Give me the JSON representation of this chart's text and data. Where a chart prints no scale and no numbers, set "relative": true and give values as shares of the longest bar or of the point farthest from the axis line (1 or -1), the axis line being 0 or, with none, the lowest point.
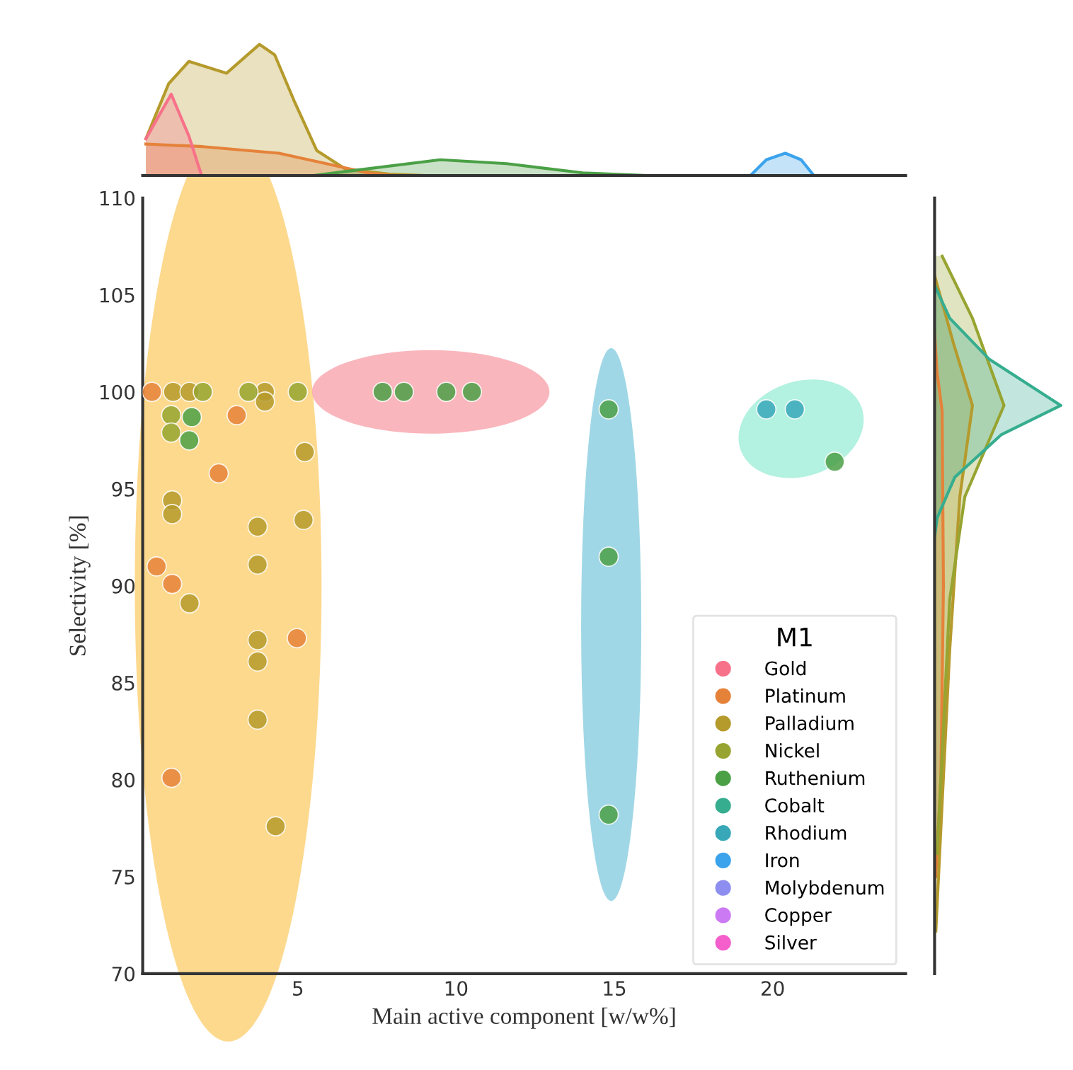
{
  "chart_data": [
    {
      "type": "scatter",
      "xlabel": "Main active component [w/w%]",
      "ylabel": "Selectivity [%]",
      "legend_title": "M1",
      "legend": "bottom right",
      "grid": false,
      "marker": "circle",
      "xlim": [
        0.1,
        24.2
      ],
      "xticks": [
        5,
        10,
        15,
        20
      ],
      "ylim": [
        70,
        110
      ],
      "yticks": [
        70,
        75,
        80,
        85,
        90,
        95,
        100,
        105,
        110
      ],
      "series": [
        {
          "name": "Gold",
          "color": "#f77189"
        },
        {
          "name": "Platinum",
          "color": "#e5823a",
          "x": [
            0.39,
            3.07,
            2.5,
            0.54,
            1.03,
            4.97,
            1.01
          ],
          "values": [
            100,
            98.8,
            95.8,
            91.0,
            90.1,
            87.3,
            80.1
          ]
        },
        {
          "name": "Palladium",
          "color": "#b59a2c",
          "x": [
            1.06,
            1.58,
            3.96,
            3.96,
            5.22,
            1.03,
            1.03,
            3.73,
            5.18,
            3.73,
            1.58,
            3.73,
            3.73,
            3.73,
            4.3
          ],
          "values": [
            100,
            100,
            100,
            99.5,
            96.9,
            94.4,
            93.7,
            93.05,
            93.4,
            91.1,
            89.1,
            87.2,
            86.1,
            83.1,
            77.6
          ]
        },
        {
          "name": "Nickel",
          "color": "#97a431",
          "x": [
            2.0,
            3.44,
            5.0,
            1.0,
            1.0
          ],
          "values": [
            100,
            100,
            100,
            98.8,
            97.9
          ]
        },
        {
          "name": "Ruthenium",
          "color": "#4ba046",
          "x": [
            1.65,
            1.57,
            7.68,
            8.35,
            9.69,
            10.5,
            14.82,
            14.82,
            14.82,
            21.96
          ],
          "values": [
            98.7,
            97.5,
            100,
            100,
            100,
            100,
            99.1,
            91.5,
            78.2,
            96.4
          ]
        },
        {
          "name": "Cobalt",
          "color": "#36ad8f"
        },
        {
          "name": "Rhodium",
          "color": "#38a8b8",
          "x": [
            19.8,
            20.7
          ],
          "values": [
            99.1,
            99.1
          ]
        },
        {
          "name": "Iron",
          "color": "#3ba3ec"
        },
        {
          "name": "Molybdenum",
          "color": "#8e8ef0"
        },
        {
          "name": "Copper",
          "color": "#cc7af4"
        },
        {
          "name": "Silver",
          "color": "#f45fcc"
        }
      ]
    },
    {
      "type": "area",
      "relative": true,
      "tick_labels": false,
      "xlim": [
        0.1,
        24.2
      ],
      "series": [
        {
          "color": "#b59a2c",
          "x": [
            0.2,
            0.92,
            1.56,
            2.75,
            3.79,
            4.27,
            4.9,
            5.6,
            6.5,
            7.9,
            9.0
          ],
          "values": [
            0.28,
            0.7,
            0.87,
            0.78,
            1.0,
            0.92,
            0.56,
            0.19,
            0.05,
            0.01,
            0
          ]
        },
        {
          "color": "#e5823a",
          "x": [
            0.2,
            2.0,
            4.4,
            5.9,
            7.2,
            8.0
          ],
          "values": [
            0.24,
            0.22,
            0.17,
            0.09,
            0.02,
            0
          ]
        },
        {
          "color": "#f77189",
          "x": [
            0.2,
            1.0,
            1.56,
            1.96
          ],
          "values": [
            0.28,
            0.62,
            0.3,
            0
          ]
        },
        {
          "color": "#4ba046",
          "x": [
            5.5,
            6.5,
            9.5,
            11.6,
            14.0,
            16.0
          ],
          "values": [
            0,
            0.03,
            0.12,
            0.09,
            0.02,
            0
          ]
        },
        {
          "color": "#3ba3ec",
          "x": [
            19.3,
            19.8,
            20.4,
            20.9,
            21.3
          ],
          "values": [
            0,
            0.12,
            0.17,
            0.12,
            0
          ]
        }
      ]
    },
    {
      "type": "area",
      "orientation": "horizontal",
      "relative": true,
      "tick_labels": false,
      "ylim": [
        70,
        110
      ],
      "series": [
        {
          "color": "#e5823a",
          "x": [
            103,
            101,
            99,
            90,
            80,
            75
          ],
          "values": [
            0,
            0.02,
            0.06,
            0.07,
            0.05,
            0.01
          ]
        },
        {
          "color": "#b59a2c",
          "x": [
            106,
            102.5,
            99.3,
            94.6,
            86.7,
            78.8,
            72.2
          ],
          "values": [
            0,
            0.15,
            0.3,
            0.2,
            0.12,
            0.06,
            0.01
          ]
        },
        {
          "color": "#97a431",
          "x": [
            107,
            103.8,
            99.3,
            94.6,
            89.3,
            81.4,
            76.2
          ],
          "values": [
            0.06,
            0.3,
            0.55,
            0.24,
            0.12,
            0.06,
            0.02
          ]
        },
        {
          "color": "#36ad8f",
          "x": [
            105.5,
            103.8,
            101.7,
            99.3,
            97.8,
            95.6,
            93.5,
            92.5
          ],
          "values": [
            0,
            0.12,
            0.43,
            1.0,
            0.53,
            0.16,
            0.02,
            0
          ]
        }
      ]
    }
  ]
}
